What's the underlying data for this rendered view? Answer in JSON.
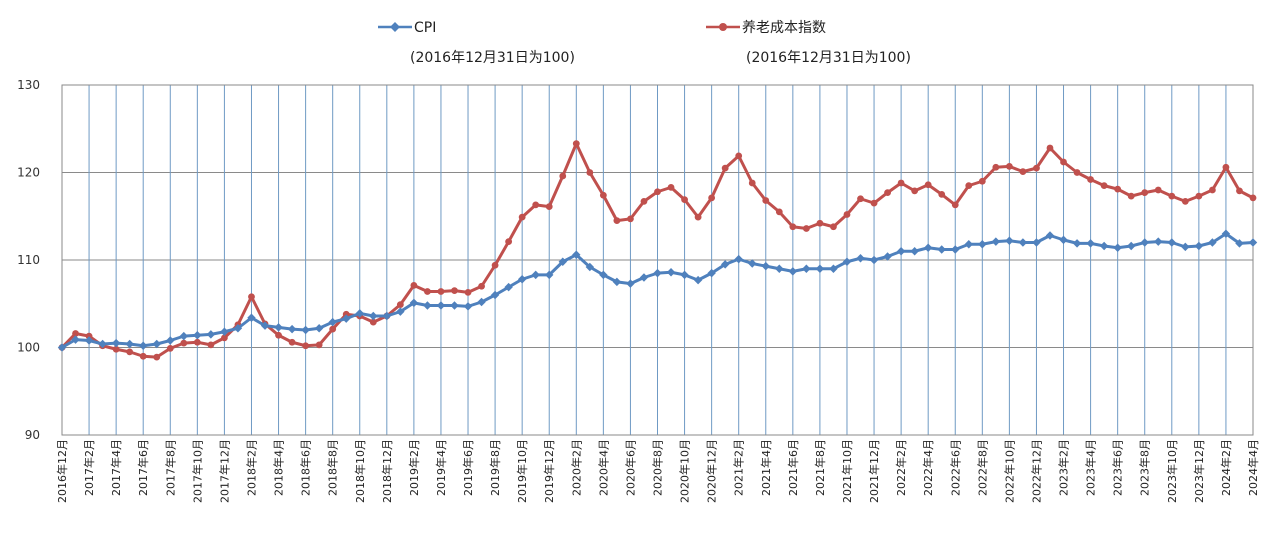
{
  "chart_data": {
    "type": "line",
    "title": "",
    "xlabel": "",
    "ylabel": "",
    "ylim": [
      90,
      130
    ],
    "yticks": [
      "90",
      "100",
      "110",
      "120",
      "130"
    ],
    "grid": "vertical and horizontal",
    "legend_position": "top",
    "categories": [
      "2016年12月",
      "2017年1月",
      "2017年2月",
      "2017年3月",
      "2017年4月",
      "2017年5月",
      "2017年6月",
      "2017年7月",
      "2017年8月",
      "2017年9月",
      "2017年10月",
      "2017年11月",
      "2017年12月",
      "2018年1月",
      "2018年2月",
      "2018年3月",
      "2018年4月",
      "2018年5月",
      "2018年6月",
      "2018年7月",
      "2018年8月",
      "2018年9月",
      "2018年10月",
      "2018年11月",
      "2018年12月",
      "2019年1月",
      "2019年2月",
      "2019年3月",
      "2019年4月",
      "2019年5月",
      "2019年6月",
      "2019年7月",
      "2019年8月",
      "2019年9月",
      "2019年10月",
      "2019年11月",
      "2019年12月",
      "2020年1月",
      "2020年2月",
      "2020年3月",
      "2020年4月",
      "2020年5月",
      "2020年6月",
      "2020年7月",
      "2020年8月",
      "2020年9月",
      "2020年10月",
      "2020年11月",
      "2020年12月",
      "2021年1月",
      "2021年2月",
      "2021年3月",
      "2021年4月",
      "2021年5月",
      "2021年6月",
      "2021年7月",
      "2021年8月",
      "2021年9月",
      "2021年10月",
      "2021年11月",
      "2021年12月",
      "2022年1月",
      "2022年2月",
      "2022年3月",
      "2022年4月",
      "2022年5月",
      "2022年6月",
      "2022年7月",
      "2022年8月",
      "2022年9月",
      "2022年10月",
      "2022年11月",
      "2022年12月",
      "2023年1月",
      "2023年2月",
      "2023年3月",
      "2023年4月",
      "2023年5月",
      "2023年6月",
      "2023年7月",
      "2023年8月",
      "2023年9月",
      "2023年10月",
      "2023年11月",
      "2023年12月",
      "2024年1月",
      "2024年2月",
      "2024年3月",
      "2024年4月"
    ],
    "tick_labels": [
      "2016年12月",
      "2017年2月",
      "2017年4月",
      "2017年6月",
      "2017年8月",
      "2017年10月",
      "2017年12月",
      "2018年2月",
      "2018年4月",
      "2018年6月",
      "2018年8月",
      "2018年10月",
      "2018年12月",
      "2019年2月",
      "2019年4月",
      "2019年6月",
      "2019年8月",
      "2019年10月",
      "2019年12月",
      "2020年2月",
      "2020年4月",
      "2020年6月",
      "2020年8月",
      "2020年10月",
      "2020年12月",
      "2021年2月",
      "2021年4月",
      "2021年6月",
      "2021年8月",
      "2021年10月",
      "2021年12月",
      "2022年2月",
      "2022年4月",
      "2022年6月",
      "2022年8月",
      "2022年10月",
      "2022年12月",
      "2023年2月",
      "2023年4月",
      "2023年6月",
      "2023年8月",
      "2023年10月",
      "2023年12月",
      "2024年2月",
      "2024年4月"
    ],
    "series": [
      {
        "name": "CPI",
        "note": "(2016年12月31日为100)",
        "color": "#4F81BD",
        "marker": "diamond",
        "values": [
          100.0,
          100.9,
          100.8,
          100.4,
          100.5,
          100.4,
          100.2,
          100.4,
          100.8,
          101.3,
          101.4,
          101.5,
          101.8,
          102.2,
          103.4,
          102.5,
          102.3,
          102.1,
          102.0,
          102.2,
          102.9,
          103.3,
          103.9,
          103.6,
          103.6,
          104.1,
          105.1,
          104.8,
          104.8,
          104.8,
          104.7,
          105.2,
          106.0,
          106.9,
          107.8,
          108.3,
          108.3,
          109.8,
          110.6,
          109.2,
          108.3,
          107.5,
          107.3,
          108.0,
          108.5,
          108.6,
          108.3,
          107.7,
          108.5,
          109.5,
          110.1,
          109.6,
          109.3,
          109.0,
          108.7,
          109.0,
          109.0,
          109.0,
          109.8,
          110.2,
          110.0,
          110.4,
          111.0,
          111.0,
          111.4,
          111.2,
          111.2,
          111.8,
          111.8,
          112.1,
          112.2,
          112.0,
          112.0,
          112.8,
          112.3,
          111.9,
          111.9,
          111.6,
          111.4,
          111.6,
          112.0,
          112.1,
          112.0,
          111.5,
          111.6,
          112.0,
          113.0,
          111.9,
          112.0
        ]
      },
      {
        "name": "养老成本指数",
        "note": "(2016年12月31日为100)",
        "color": "#C0504D",
        "marker": "circle",
        "values": [
          100.0,
          101.6,
          101.3,
          100.2,
          99.8,
          99.5,
          99.0,
          98.9,
          99.9,
          100.5,
          100.6,
          100.3,
          101.1,
          102.6,
          105.8,
          102.7,
          101.4,
          100.6,
          100.2,
          100.3,
          102.1,
          103.8,
          103.6,
          102.9,
          103.6,
          104.9,
          107.1,
          106.4,
          106.4,
          106.5,
          106.3,
          107.0,
          109.4,
          112.1,
          114.9,
          116.3,
          116.1,
          119.6,
          123.3,
          120.0,
          117.4,
          114.5,
          114.7,
          116.7,
          117.8,
          118.3,
          116.9,
          114.9,
          117.1,
          120.5,
          121.9,
          118.8,
          116.8,
          115.5,
          113.8,
          113.6,
          114.2,
          113.8,
          115.2,
          117.0,
          116.5,
          117.7,
          118.8,
          117.9,
          118.6,
          117.5,
          116.3,
          118.5,
          119.0,
          120.6,
          120.7,
          120.1,
          120.5,
          122.8,
          121.2,
          120.0,
          119.2,
          118.5,
          118.1,
          117.3,
          117.7,
          118.0,
          117.3,
          116.7,
          117.3,
          118.0,
          120.6,
          117.9,
          117.1
        ]
      }
    ]
  }
}
